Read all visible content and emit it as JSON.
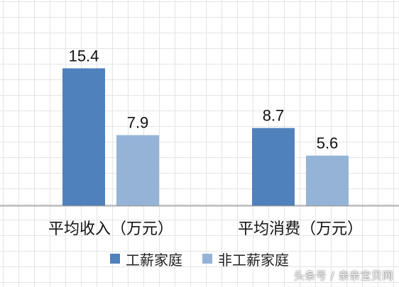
{
  "chart_data": {
    "type": "bar",
    "categories": [
      "平均收入（万元）",
      "平均消费（万元）"
    ],
    "series": [
      {
        "name": "工薪家庭",
        "values": [
          15.4,
          8.7
        ],
        "color": "#4f81bd"
      },
      {
        "name": "非工薪家庭",
        "values": [
          7.9,
          5.6
        ],
        "color": "#95b3d7"
      }
    ],
    "data_labels": [
      [
        "15.4",
        "8.7"
      ],
      [
        "7.9",
        "5.6"
      ]
    ],
    "ylim": [
      0,
      17.5
    ],
    "grid": true,
    "legend_position": "bottom"
  },
  "legend": {
    "items": [
      {
        "label": "工薪家庭",
        "color": "#4f81bd"
      },
      {
        "label": "非工薪家庭",
        "color": "#95b3d7"
      }
    ]
  },
  "watermark": {
    "text": "头条号 / 亲亲宝贝网"
  }
}
